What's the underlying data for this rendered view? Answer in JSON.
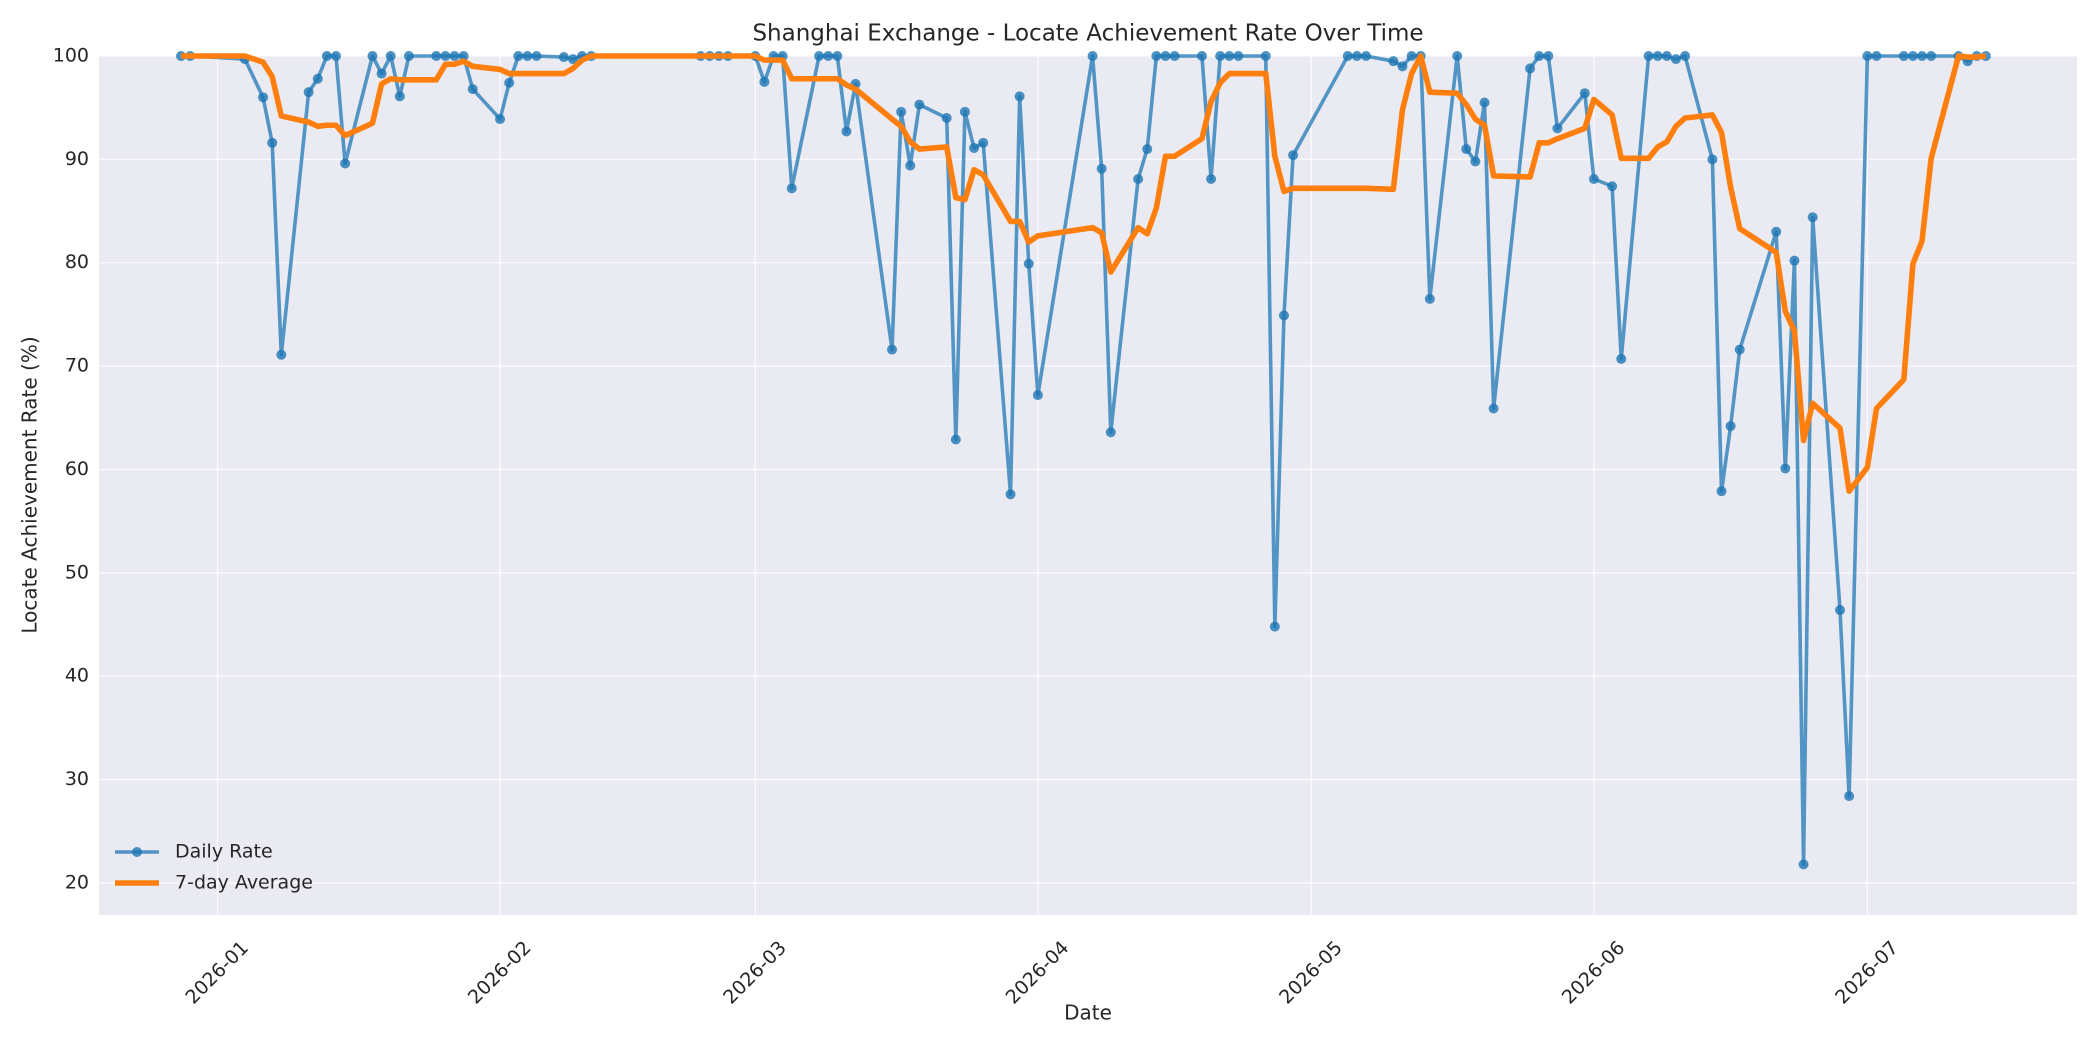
{
  "chart_data": {
    "type": "line",
    "title": "Shanghai Exchange - Locate Achievement Rate Over Time",
    "x_label": "Date",
    "y_label": "Locate Achievement Rate (%)",
    "x": [
      "2025-12-28",
      "2025-12-29",
      "2026-01-04",
      "2026-01-06",
      "2026-01-07",
      "2026-01-08",
      "2026-01-11",
      "2026-01-12",
      "2026-01-13",
      "2026-01-14",
      "2026-01-15",
      "2026-01-18",
      "2026-01-19",
      "2026-01-20",
      "2026-01-21",
      "2026-01-22",
      "2026-01-25",
      "2026-01-26",
      "2026-01-27",
      "2026-01-28",
      "2026-01-29",
      "2026-02-01",
      "2026-02-02",
      "2026-02-03",
      "2026-02-04",
      "2026-02-05",
      "2026-02-08",
      "2026-02-09",
      "2026-02-10",
      "2026-02-11",
      "2026-02-23",
      "2026-02-24",
      "2026-02-25",
      "2026-02-26",
      "2026-03-01",
      "2026-03-02",
      "2026-03-03",
      "2026-03-04",
      "2026-03-05",
      "2026-03-08",
      "2026-03-09",
      "2026-03-10",
      "2026-03-11",
      "2026-03-12",
      "2026-03-16",
      "2026-03-17",
      "2026-03-18",
      "2026-03-19",
      "2026-03-22",
      "2026-03-23",
      "2026-03-24",
      "2026-03-25",
      "2026-03-26",
      "2026-03-29",
      "2026-03-30",
      "2026-03-31",
      "2026-04-01",
      "2026-04-07",
      "2026-04-08",
      "2026-04-09",
      "2026-04-12",
      "2026-04-13",
      "2026-04-14",
      "2026-04-15",
      "2026-04-16",
      "2026-04-19",
      "2026-04-20",
      "2026-04-21",
      "2026-04-22",
      "2026-04-23",
      "2026-04-26",
      "2026-04-27",
      "2026-04-28",
      "2026-04-29",
      "2026-05-05",
      "2026-05-06",
      "2026-05-07",
      "2026-05-10",
      "2026-05-11",
      "2026-05-12",
      "2026-05-13",
      "2026-05-14",
      "2026-05-17",
      "2026-05-18",
      "2026-05-19",
      "2026-05-20",
      "2026-05-21",
      "2026-05-25",
      "2026-05-26",
      "2026-05-27",
      "2026-05-28",
      "2026-05-31",
      "2026-06-01",
      "2026-06-03",
      "2026-06-04",
      "2026-06-07",
      "2026-06-08",
      "2026-06-09",
      "2026-06-10",
      "2026-06-11",
      "2026-06-14",
      "2026-06-15",
      "2026-06-16",
      "2026-06-17",
      "2026-06-21",
      "2026-06-22",
      "2026-06-23",
      "2026-06-24",
      "2026-06-25",
      "2026-06-28",
      "2026-06-29",
      "2026-07-01",
      "2026-07-02",
      "2026-07-05",
      "2026-07-06",
      "2026-07-07",
      "2026-07-08",
      "2026-07-11",
      "2026-07-12",
      "2026-07-13",
      "2026-07-14"
    ],
    "series": [
      {
        "name": "Daily Rate",
        "color": "#1f77b4",
        "marker": true,
        "values": [
          100,
          100,
          99.7,
          96,
          91.6,
          71.1,
          96.5,
          97.8,
          100,
          100,
          89.6,
          100,
          98.3,
          100,
          96.1,
          100,
          100,
          100,
          100,
          100,
          96.8,
          93.9,
          97.4,
          100,
          100,
          100,
          99.9,
          99.7,
          100,
          100,
          100,
          100,
          100,
          100,
          100,
          97.5,
          100,
          100,
          87.2,
          100,
          100,
          100,
          92.7,
          97.3,
          71.6,
          94.6,
          89.4,
          95.3,
          94,
          62.9,
          94.6,
          91.1,
          91.6,
          57.6,
          96.1,
          79.9,
          67.2,
          100,
          89.1,
          63.6,
          88.1,
          91,
          100,
          100,
          100,
          100,
          88.1,
          100,
          100,
          100,
          100,
          44.8,
          74.9,
          90.4,
          100,
          100,
          100,
          99.5,
          99,
          100,
          100,
          76.5,
          100,
          91,
          89.8,
          95.5,
          65.9,
          98.8,
          100,
          100,
          93,
          96.4,
          88.1,
          87.4,
          70.7,
          100,
          100,
          100,
          99.7,
          100,
          90,
          57.9,
          64.2,
          71.6,
          83,
          60.1,
          80.2,
          21.8,
          84.4,
          46.4,
          28.4,
          100,
          100,
          100,
          100,
          100,
          100,
          100,
          99.5,
          100,
          100
        ]
      },
      {
        "name": "7-day Average",
        "color": "#ff7f0e",
        "marker": false,
        "values": [
          100,
          100,
          100,
          99.4,
          98,
          94.2,
          93.6,
          93.2,
          93.3,
          93.3,
          92.3,
          93.5,
          97.3,
          97.8,
          97.7,
          97.7,
          97.7,
          99.2,
          99.2,
          99.5,
          99,
          98.7,
          98.3,
          98.3,
          98.3,
          98.3,
          98.3,
          98.8,
          99.6,
          100,
          100,
          100,
          100,
          100,
          100,
          99.6,
          99.6,
          99.6,
          97.8,
          97.8,
          97.8,
          97.8,
          97.2,
          96.8,
          93.9,
          93.2,
          91.7,
          91,
          91.2,
          86.3,
          86.1,
          89,
          88.5,
          84,
          84,
          82,
          82.6,
          83.4,
          82.9,
          79.1,
          83.4,
          82.8,
          85.3,
          90.3,
          90.3,
          92,
          95.6,
          97.4,
          98.3,
          98.3,
          98.3,
          90.3,
          86.9,
          87.2,
          87.2,
          87.2,
          87.2,
          87.1,
          94.8,
          98.3,
          100,
          96.5,
          96.4,
          95.3,
          93.9,
          93.3,
          88.4,
          88.3,
          91.6,
          91.6,
          92,
          93,
          95.8,
          94.3,
          90.1,
          90.1,
          91.2,
          91.7,
          93.2,
          94,
          94.3,
          92.6,
          87.3,
          83.3,
          81,
          75.3,
          73.4,
          62.8,
          66.4,
          64,
          57.9,
          60.2,
          65.9,
          68.7,
          79.9,
          82.1,
          90.1,
          100,
          99.9,
          99.9,
          100
        ]
      }
    ],
    "xlim": [
      "2025-12-19",
      "2026-07-24"
    ],
    "xticks": [
      {
        "value": "2026-01-01",
        "label": "2026-01"
      },
      {
        "value": "2026-02-01",
        "label": "2026-02"
      },
      {
        "value": "2026-03-01",
        "label": "2026-03"
      },
      {
        "value": "2026-04-01",
        "label": "2026-04"
      },
      {
        "value": "2026-05-01",
        "label": "2026-05"
      },
      {
        "value": "2026-06-01",
        "label": "2026-06"
      },
      {
        "value": "2026-07-01",
        "label": "2026-07"
      }
    ],
    "ylim": [
      16.9,
      100
    ],
    "yticks": [
      20,
      30,
      40,
      50,
      60,
      70,
      80,
      90,
      100
    ],
    "grid": true,
    "legend": "lower left"
  }
}
